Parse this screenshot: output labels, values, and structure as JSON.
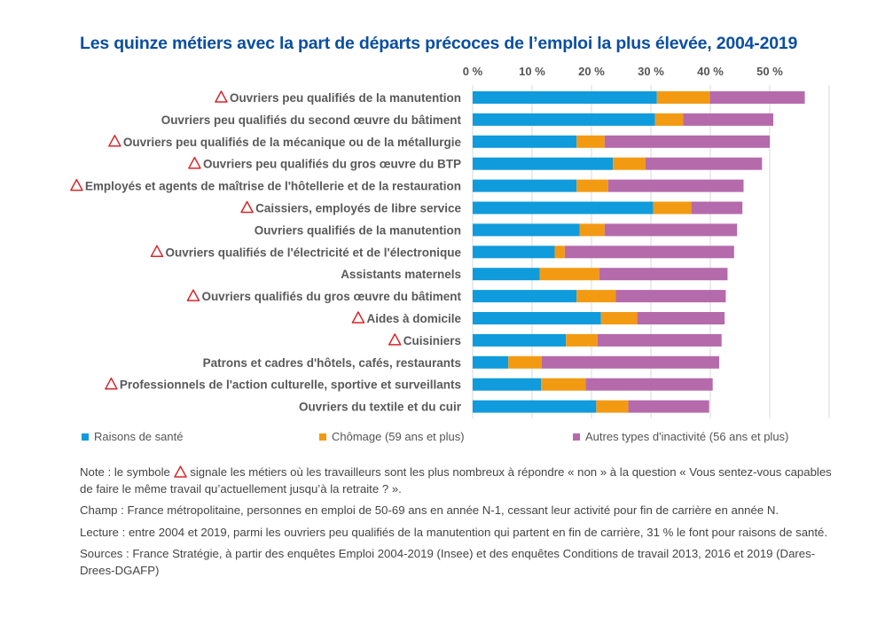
{
  "title": "Les quinze métiers avec la part de départs précoces de l’emploi la plus élevée, 2004-2019",
  "colors": {
    "title": "#0b4ea2",
    "sante": "#0f9bdc",
    "chomage": "#f39a13",
    "autres": "#b56aac",
    "warning": "#d9252a",
    "grid": "#d9d9d9",
    "text": "#595959"
  },
  "chart_data": {
    "type": "bar",
    "orientation": "horizontal",
    "stacked": true,
    "xlim": [
      0,
      60
    ],
    "xticks": [
      "0 %",
      "10 %",
      "20 %",
      "30 %",
      "40 %",
      "50 %"
    ],
    "categories": [
      "Ouvriers peu qualifiés de la manutention",
      "Ouvriers peu qualifiés du second œuvre du bâtiment",
      "Ouvriers peu qualifiés de la mécanique ou de la métallurgie",
      "Ouvriers peu qualifiés du gros œuvre du BTP",
      "Employés et agents de maîtrise de l'hôtellerie et de la restauration",
      "Caissiers, employés de libre service",
      "Ouvriers qualifiés de la manutention",
      "Ouvriers qualifiés de l'électricité et de l'électronique",
      "Assistants maternels",
      "Ouvriers qualifiés du gros œuvre du bâtiment",
      "Aides à domicile",
      "Cuisiniers",
      "Patrons et cadres d'hôtels, cafés, restaurants",
      "Professionnels de l'action culturelle, sportive et surveillants",
      "Ouvriers du textile et du cuir"
    ],
    "warning_flags": [
      true,
      false,
      true,
      true,
      true,
      true,
      false,
      true,
      false,
      true,
      true,
      true,
      false,
      true,
      false
    ],
    "series": [
      {
        "name": "Raisons de santé",
        "values": [
          31,
          30.7,
          17.5,
          23.6,
          17.5,
          30.4,
          18,
          13.8,
          11.3,
          17.5,
          21.6,
          15.7,
          6,
          11.5,
          20.8
        ]
      },
      {
        "name": "Chômage (59 ans et plus)",
        "values": [
          8.9,
          4.7,
          4.7,
          5.5,
          5.3,
          6.4,
          4.2,
          1.7,
          10,
          6.6,
          6.1,
          5.3,
          5.6,
          7.5,
          5.4
        ]
      },
      {
        "name": "Autres types d'inactivité (56 ans et plus)",
        "values": [
          16,
          15.2,
          27.8,
          19.6,
          22.8,
          8.6,
          22.3,
          28.5,
          21.6,
          18.5,
          14.7,
          20.9,
          29.9,
          21.4,
          13.6
        ]
      }
    ],
    "grid": true,
    "legend_position": "bottom"
  },
  "notes": {
    "note_before": "Note : le symbole",
    "note_after": "signale les métiers où les travailleurs sont les plus nombreux à répondre « non » à la question « Vous sentez-vous capables de faire le même travail qu’actuellement jusqu’à la retraite ? ».",
    "champ": "Champ : France métropolitaine, personnes en emploi de 50-69 ans en année N-1, cessant leur activité pour fin de carrière en année N.",
    "lecture": "Lecture : entre 2004 et 2019, parmi les ouvriers peu qualifiés de la manutention qui partent en fin de carrière, 31 % le font pour raisons de santé.",
    "sources": "Sources : France Stratégie, à partir des enquêtes Emploi 2004-2019 (Insee) et des enquêtes Conditions de travail 2013, 2016 et 2019 (Dares-Drees-DGAFP)"
  }
}
